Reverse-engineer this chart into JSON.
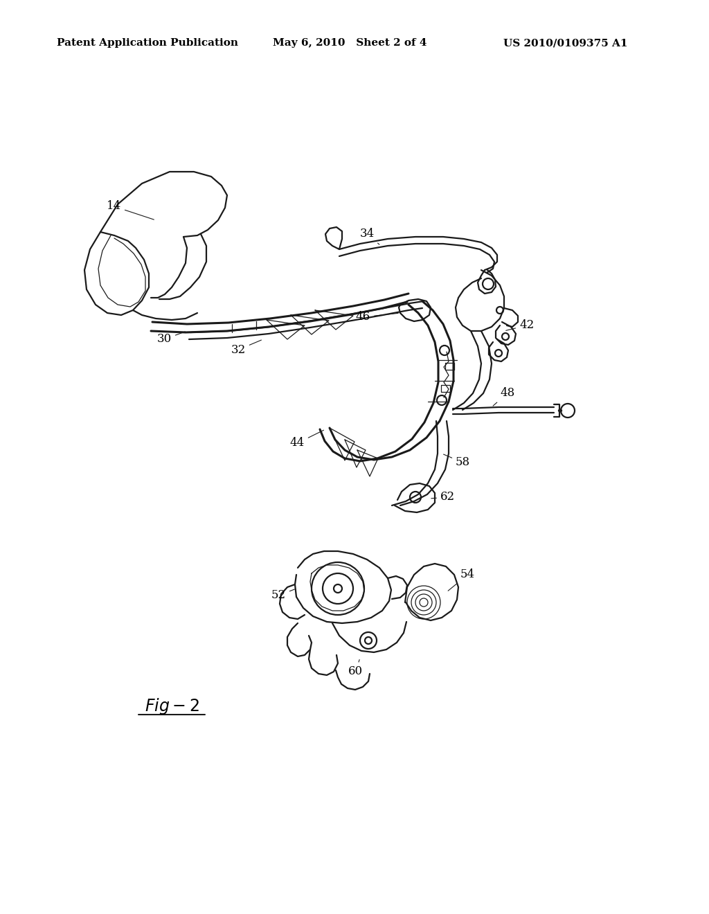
{
  "header_left": "Patent Application Publication",
  "header_center": "May 6, 2010   Sheet 2 of 4",
  "header_right": "US 2010/0109375 A1",
  "fig_label": "Fig-2",
  "background_color": "#ffffff",
  "text_color": "#000000",
  "header_fontsize": 11,
  "label_fontsize": 12,
  "fig_label_fontsize": 17,
  "line_color": "#1a1a1a",
  "lw_main": 1.6,
  "lw_thick": 2.2,
  "lw_thin": 0.9
}
